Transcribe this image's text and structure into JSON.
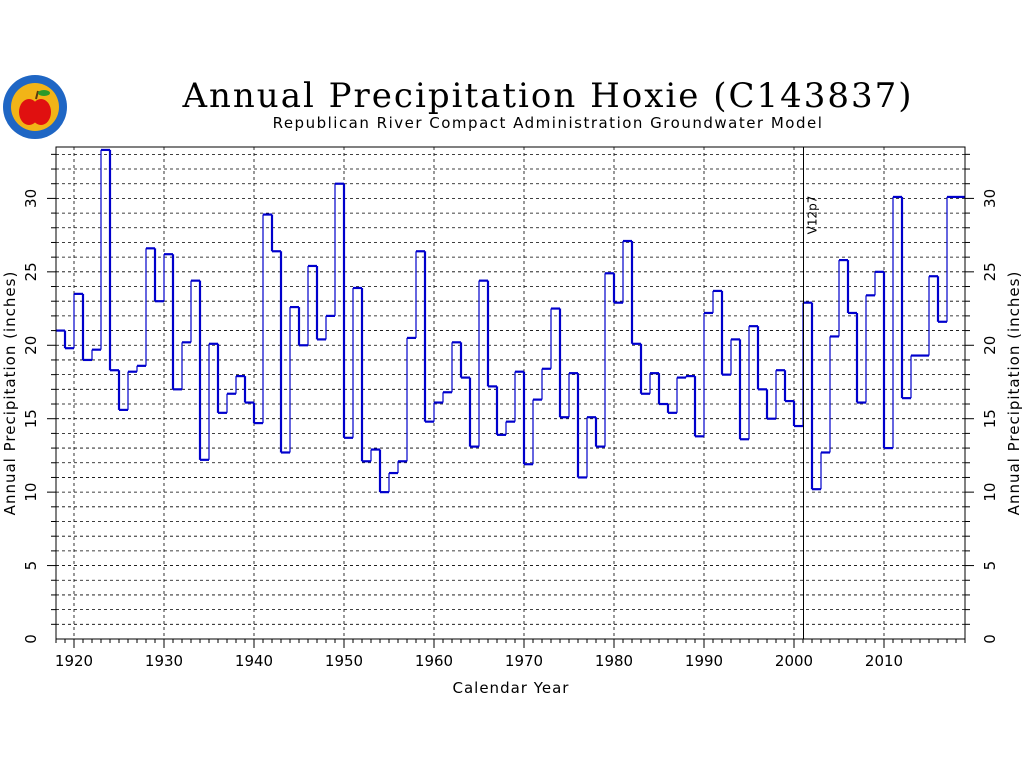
{
  "colors": {
    "line": "#0000cc",
    "grid": "#000000",
    "logo_ring": "#1f66c4",
    "logo_fill": "#f2b417",
    "logo_apple": "#e01010",
    "logo_leaf": "#2a9a2a"
  },
  "logo": {
    "icon": "apple-seal-logo"
  },
  "chart_data": {
    "type": "line",
    "step": true,
    "title": "Annual Precipitation Hoxie (C143837)",
    "subtitle": "Republican River Compact Administration Groundwater Model",
    "xlabel": "Calendar Year",
    "ylabel": "Annual Precipitation (inches)",
    "xlim": [
      1918,
      2019
    ],
    "ylim": [
      0,
      33.5
    ],
    "xticks": [
      "1920",
      "1930",
      "1940",
      "1950",
      "1960",
      "1970",
      "1980",
      "1990",
      "2000",
      "2010"
    ],
    "yticks": [
      "0",
      "5",
      "10",
      "15",
      "20",
      "25",
      "30"
    ],
    "grid": true,
    "annotation": {
      "label": "V12p7",
      "x": 2001
    },
    "x": [
      1918,
      1919,
      1920,
      1921,
      1922,
      1923,
      1924,
      1925,
      1926,
      1927,
      1928,
      1929,
      1930,
      1931,
      1932,
      1933,
      1934,
      1935,
      1936,
      1937,
      1938,
      1939,
      1940,
      1941,
      1942,
      1943,
      1944,
      1945,
      1946,
      1947,
      1948,
      1949,
      1950,
      1951,
      1952,
      1953,
      1954,
      1955,
      1956,
      1957,
      1958,
      1959,
      1960,
      1961,
      1962,
      1963,
      1964,
      1965,
      1966,
      1967,
      1968,
      1969,
      1970,
      1971,
      1972,
      1973,
      1974,
      1975,
      1976,
      1977,
      1978,
      1979,
      1980,
      1981,
      1982,
      1983,
      1984,
      1985,
      1986,
      1987,
      1988,
      1989,
      1990,
      1991,
      1992,
      1993,
      1994,
      1995,
      1996,
      1997,
      1998,
      1999,
      2000,
      2001,
      2002,
      2003,
      2004,
      2005,
      2006,
      2007,
      2008,
      2009,
      2010,
      2011,
      2012,
      2013,
      2014,
      2015,
      2016,
      2017,
      2018
    ],
    "values": [
      21.0,
      19.8,
      23.5,
      19.0,
      19.7,
      33.3,
      18.3,
      15.6,
      18.2,
      18.6,
      26.6,
      23.0,
      26.2,
      17.0,
      20.2,
      24.4,
      12.2,
      20.1,
      15.4,
      16.7,
      17.9,
      16.1,
      14.7,
      28.9,
      26.4,
      12.7,
      22.6,
      20.0,
      25.4,
      20.4,
      22.0,
      31.0,
      13.7,
      23.9,
      12.1,
      12.9,
      10.0,
      11.3,
      12.1,
      20.5,
      26.4,
      14.8,
      16.1,
      16.8,
      20.2,
      17.8,
      13.1,
      24.4,
      17.2,
      13.9,
      14.8,
      18.2,
      11.9,
      16.3,
      18.4,
      22.5,
      15.1,
      18.1,
      11.0,
      15.1,
      13.1,
      24.9,
      22.9,
      27.1,
      20.1,
      16.7,
      18.1,
      16.0,
      15.4,
      17.8,
      17.9,
      13.8,
      22.2,
      23.7,
      18.0,
      20.4,
      13.6,
      21.3,
      17.0,
      15.0,
      18.3,
      16.2,
      14.5,
      22.9,
      10.2,
      12.7,
      20.6,
      25.8,
      22.2,
      16.1,
      23.4,
      25.0,
      13.0,
      30.1,
      16.4,
      19.3,
      19.3,
      24.7,
      21.6,
      30.1,
      30.1
    ]
  }
}
